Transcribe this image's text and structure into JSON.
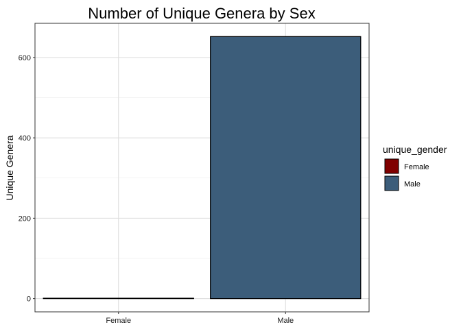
{
  "chart_data": {
    "type": "bar",
    "title": "Number of Unique Genera by Sex",
    "xlabel": "",
    "ylabel": "Unique Genera",
    "categories": [
      "Female",
      "Male"
    ],
    "values": [
      1,
      652
    ],
    "colors": [
      "#800000",
      "#3c5d7a"
    ],
    "ylim": [
      -33,
      685
    ],
    "yticks": [
      0,
      200,
      400,
      600
    ],
    "yticks_labels": [
      "0",
      "200",
      "400",
      "600"
    ],
    "y_minor_ticks": [
      100,
      300,
      500
    ],
    "grid": true,
    "legend": {
      "title": "unique_gender",
      "placement": "right",
      "entries": [
        {
          "label": "Female",
          "color": "#800000"
        },
        {
          "label": "Male",
          "color": "#3c5d7a"
        }
      ]
    }
  }
}
